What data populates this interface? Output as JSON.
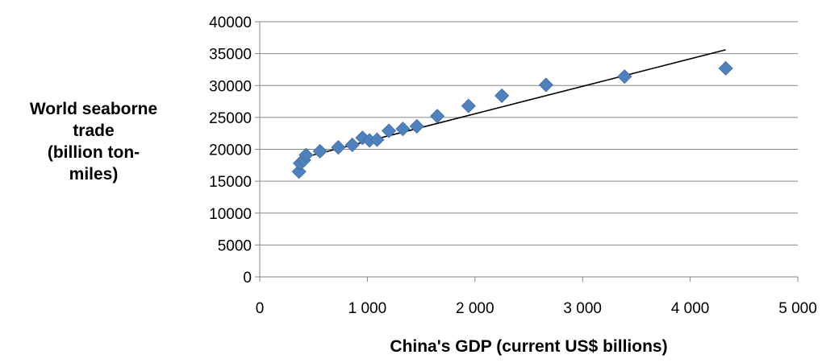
{
  "chart_data": {
    "type": "scatter",
    "title": "",
    "xlabel": "China's GDP (current US$ billions)",
    "ylabel_lines": [
      "World seaborne",
      "trade",
      "(billion ton-",
      "miles)"
    ],
    "xlim": [
      0,
      5000
    ],
    "ylim": [
      0,
      40000
    ],
    "x_ticks": [
      0,
      1000,
      2000,
      3000,
      4000,
      5000
    ],
    "x_tick_labels": [
      "0",
      "1 000",
      "2 000",
      "3 000",
      "4 000",
      "5 000"
    ],
    "y_ticks": [
      0,
      5000,
      10000,
      15000,
      20000,
      25000,
      30000,
      35000,
      40000
    ],
    "y_tick_labels": [
      "0",
      "5000",
      "10000",
      "15000",
      "20000",
      "25000",
      "30000",
      "35000",
      "40000"
    ],
    "grid": "horizontal",
    "legend": "none",
    "marker": "diamond",
    "marker_color": "#4f81bd",
    "series": [
      {
        "points": [
          {
            "x": 365,
            "y": 16500
          },
          {
            "x": 375,
            "y": 17800
          },
          {
            "x": 410,
            "y": 18300
          },
          {
            "x": 430,
            "y": 19100
          },
          {
            "x": 560,
            "y": 19700
          },
          {
            "x": 730,
            "y": 20300
          },
          {
            "x": 860,
            "y": 20700
          },
          {
            "x": 955,
            "y": 21800
          },
          {
            "x": 1020,
            "y": 21400
          },
          {
            "x": 1090,
            "y": 21500
          },
          {
            "x": 1200,
            "y": 22900
          },
          {
            "x": 1330,
            "y": 23200
          },
          {
            "x": 1460,
            "y": 23600
          },
          {
            "x": 1650,
            "y": 25200
          },
          {
            "x": 1940,
            "y": 26800
          },
          {
            "x": 2250,
            "y": 28400
          },
          {
            "x": 2660,
            "y": 30100
          },
          {
            "x": 3390,
            "y": 31400
          },
          {
            "x": 4330,
            "y": 32700
          }
        ]
      }
    ],
    "trendline": {
      "type": "linear",
      "color": "#000000",
      "from": {
        "x": 380,
        "y": 18600
      },
      "to": {
        "x": 4330,
        "y": 35600
      }
    }
  }
}
